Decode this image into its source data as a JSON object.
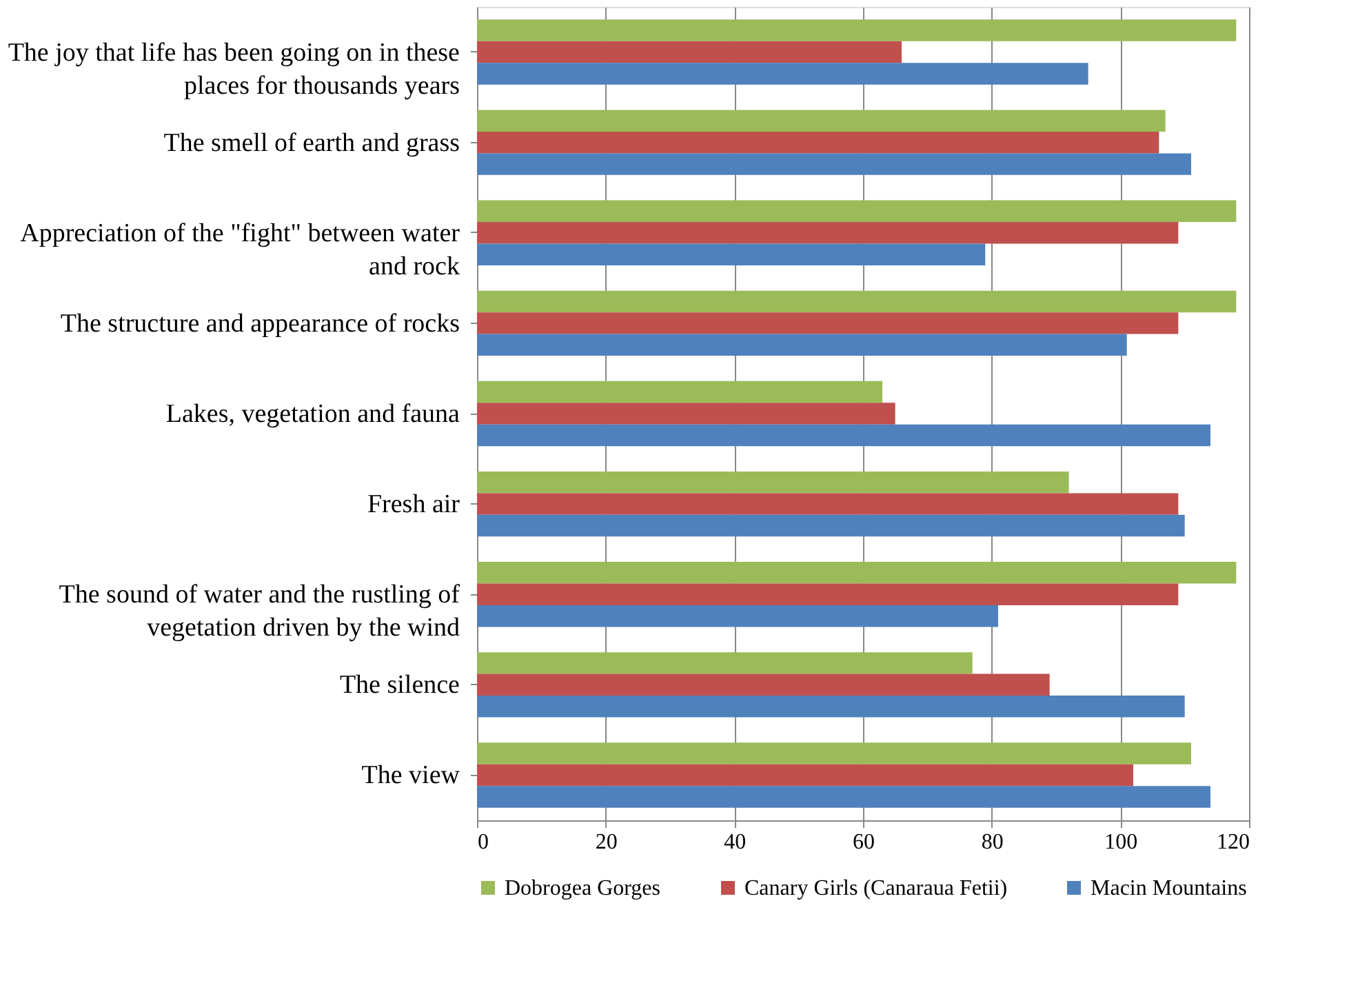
{
  "chart_data": {
    "type": "bar",
    "orientation": "horizontal",
    "categories": [
      "The joy that life has been going on in these places for thousands  years",
      "The smell of earth and grass",
      "Appreciation of the \"fight\" between water and rock",
      "The structure and appearance of rocks",
      "Lakes, vegetation and fauna",
      "Fresh air",
      "The sound of water and the rustling of vegetation driven by the wind",
      "The silence",
      "The view"
    ],
    "series": [
      {
        "name": "Dobrogea Gorges",
        "color": "#9bbb59",
        "values": [
          118,
          107,
          118,
          118,
          63,
          92,
          118,
          77,
          111
        ]
      },
      {
        "name": "Canary Girls (Canaraua Fetii)",
        "color": "#c0504d",
        "values": [
          66,
          106,
          109,
          109,
          65,
          109,
          109,
          89,
          102
        ]
      },
      {
        "name": "Macin Mountains",
        "color": "#4f81bd",
        "values": [
          95,
          111,
          79,
          101,
          114,
          110,
          81,
          110,
          114
        ]
      }
    ],
    "xlim": [
      0,
      120
    ],
    "xticks": [
      0,
      20,
      40,
      60,
      80,
      100,
      120
    ],
    "grid": "x",
    "legend": "bottom"
  }
}
